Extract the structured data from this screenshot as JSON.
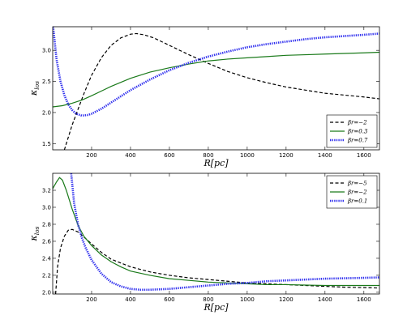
{
  "chart_data": [
    {
      "type": "line",
      "ylabel": "κ_los",
      "ylabel_main": "κ",
      "ylabel_sub": "los",
      "xlabel": "R[pc]",
      "xlim": [
        0,
        1680
      ],
      "ylim": [
        1.4,
        3.38
      ],
      "xticks": [
        200,
        400,
        600,
        800,
        1000,
        1200,
        1400,
        1600
      ],
      "yticks": [
        1.5,
        2.0,
        2.5,
        3.0
      ],
      "legend_position": "lower-right",
      "series": [
        {
          "name": "βr=−2",
          "color": "#000000",
          "style": "dashed",
          "x": [
            60,
            80,
            100,
            130,
            160,
            200,
            250,
            300,
            350,
            400,
            430,
            470,
            520,
            600,
            700,
            800,
            900,
            1000,
            1100,
            1200,
            1300,
            1400,
            1500,
            1600,
            1680
          ],
          "y": [
            1.4,
            1.6,
            1.8,
            2.05,
            2.3,
            2.6,
            2.88,
            3.08,
            3.2,
            3.26,
            3.27,
            3.25,
            3.2,
            3.08,
            2.93,
            2.79,
            2.66,
            2.56,
            2.48,
            2.41,
            2.36,
            2.31,
            2.28,
            2.25,
            2.22
          ]
        },
        {
          "name": "βr=0.3",
          "color": "#1a7a1a",
          "style": "solid",
          "x": [
            0,
            50,
            100,
            150,
            200,
            300,
            400,
            500,
            600,
            700,
            800,
            900,
            1000,
            1100,
            1200,
            1300,
            1400,
            1500,
            1600,
            1680
          ],
          "y": [
            2.09,
            2.11,
            2.15,
            2.2,
            2.27,
            2.42,
            2.55,
            2.65,
            2.72,
            2.78,
            2.83,
            2.86,
            2.88,
            2.9,
            2.92,
            2.93,
            2.94,
            2.95,
            2.96,
            2.97
          ]
        },
        {
          "name": "βr=0.7",
          "color": "#3333ee",
          "style": "dotted",
          "x": [
            0,
            10,
            20,
            40,
            60,
            80,
            100,
            120,
            150,
            180,
            200,
            250,
            300,
            400,
            500,
            600,
            700,
            800,
            900,
            1000,
            1100,
            1200,
            1300,
            1400,
            1500,
            1600,
            1680
          ],
          "y": [
            3.45,
            3.15,
            2.85,
            2.5,
            2.28,
            2.13,
            2.04,
            1.98,
            1.95,
            1.96,
            1.98,
            2.06,
            2.16,
            2.36,
            2.53,
            2.68,
            2.8,
            2.9,
            2.98,
            3.05,
            3.1,
            3.14,
            3.18,
            3.21,
            3.23,
            3.25,
            3.27
          ]
        }
      ]
    },
    {
      "type": "line",
      "ylabel": "κ_los",
      "ylabel_main": "κ",
      "ylabel_sub": "los",
      "xlabel": "R[pc]",
      "xlim": [
        0,
        1680
      ],
      "ylim": [
        1.98,
        3.4
      ],
      "xticks": [
        200,
        400,
        600,
        800,
        1000,
        1200,
        1400,
        1600
      ],
      "yticks": [
        2.0,
        2.2,
        2.4,
        2.6,
        2.8,
        3.0,
        3.2
      ],
      "legend_position": "upper-right",
      "series": [
        {
          "name": "βr=−5",
          "color": "#000000",
          "style": "dashed",
          "x": [
            15,
            25,
            40,
            60,
            80,
            100,
            130,
            160,
            200,
            250,
            300,
            400,
            500,
            600,
            700,
            800,
            900,
            1000,
            1100,
            1200,
            1300,
            1400,
            1500,
            1600,
            1680
          ],
          "y": [
            1.98,
            2.3,
            2.52,
            2.66,
            2.73,
            2.74,
            2.71,
            2.65,
            2.57,
            2.47,
            2.39,
            2.3,
            2.24,
            2.2,
            2.17,
            2.15,
            2.13,
            2.11,
            2.1,
            2.09,
            2.08,
            2.07,
            2.06,
            2.055,
            2.05
          ]
        },
        {
          "name": "βr=−2",
          "color": "#1a7a1a",
          "style": "solid",
          "x": [
            0,
            20,
            35,
            50,
            70,
            100,
            130,
            160,
            200,
            250,
            300,
            350,
            400,
            500,
            600,
            700,
            800,
            900,
            1000,
            1100,
            1200,
            1300,
            1400,
            1500,
            1600,
            1680
          ],
          "y": [
            3.22,
            3.3,
            3.35,
            3.32,
            3.2,
            2.98,
            2.79,
            2.66,
            2.55,
            2.44,
            2.36,
            2.3,
            2.25,
            2.2,
            2.16,
            2.14,
            2.12,
            2.11,
            2.1,
            2.09,
            2.09,
            2.085,
            2.08,
            2.08,
            2.08,
            2.08
          ]
        },
        {
          "name": "βr=0.1",
          "color": "#3333ee",
          "style": "dotted",
          "x": [
            95,
            110,
            130,
            150,
            170,
            200,
            250,
            300,
            350,
            400,
            450,
            500,
            600,
            700,
            800,
            900,
            1000,
            1100,
            1200,
            1300,
            1400,
            1500,
            1600,
            1680
          ],
          "y": [
            3.4,
            3.05,
            2.8,
            2.64,
            2.52,
            2.38,
            2.22,
            2.12,
            2.07,
            2.04,
            2.03,
            2.03,
            2.04,
            2.06,
            2.08,
            2.1,
            2.11,
            2.13,
            2.14,
            2.15,
            2.16,
            2.165,
            2.17,
            2.175
          ]
        }
      ]
    }
  ]
}
